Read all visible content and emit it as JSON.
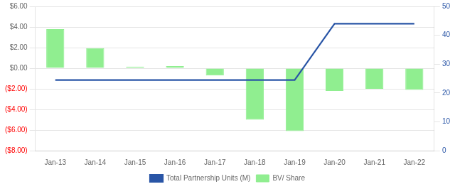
{
  "chart_data": {
    "type": "bar",
    "categories": [
      "Jan-13",
      "Jan-14",
      "Jan-15",
      "Jan-16",
      "Jan-17",
      "Jan-18",
      "Jan-19",
      "Jan-20",
      "Jan-21",
      "Jan-22"
    ],
    "series": [
      {
        "name": "BV/ Share",
        "type": "bar",
        "color": "#90EE90",
        "values": [
          3.8,
          1.95,
          0.15,
          0.2,
          -0.7,
          -5.0,
          -6.1,
          -2.2,
          -2.0,
          -2.1
        ]
      },
      {
        "name": "Total Partnership Units (M)",
        "type": "line",
        "color": "#2955A6",
        "axis": "y2",
        "values": [
          24.5,
          24.5,
          24.5,
          24.5,
          24.5,
          24.5,
          24.5,
          44.0,
          44.0,
          44.0
        ]
      }
    ],
    "ylim": [
      -8,
      6
    ],
    "yticks": [
      {
        "value": 6,
        "label": "$6.00"
      },
      {
        "value": 4,
        "label": "$4.00"
      },
      {
        "value": 2,
        "label": "$2.00"
      },
      {
        "value": 0,
        "label": "$0.00"
      },
      {
        "value": -2,
        "label": "($2.00)"
      },
      {
        "value": -4,
        "label": "($4.00)"
      },
      {
        "value": -6,
        "label": "($6.00)"
      },
      {
        "value": -8,
        "label": "($8.00)"
      }
    ],
    "y2lim": [
      0,
      50
    ],
    "y2ticks": [
      0,
      10,
      20,
      30,
      40,
      50
    ],
    "grid": "y",
    "legend": "bottom"
  }
}
